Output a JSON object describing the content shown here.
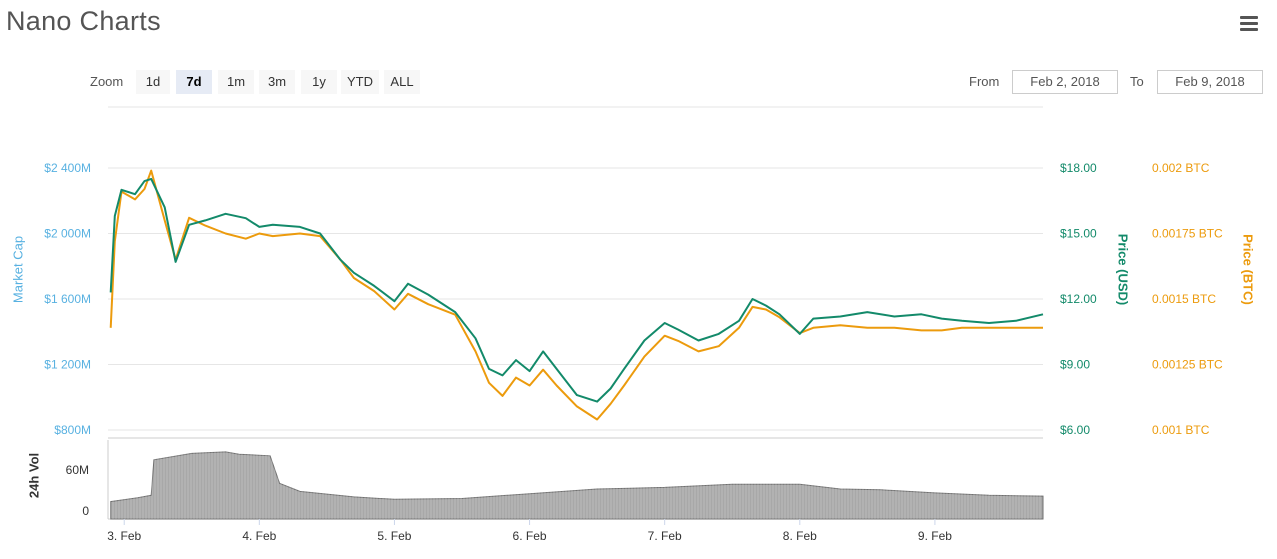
{
  "header": {
    "title": "Nano Charts"
  },
  "toolbar": {
    "zoom_label": "Zoom",
    "zoom_buttons": [
      {
        "label": "1d"
      },
      {
        "label": "7d",
        "active": true
      },
      {
        "label": "1m"
      },
      {
        "label": "3m"
      },
      {
        "label": "1y"
      },
      {
        "label": "YTD"
      },
      {
        "label": "ALL"
      }
    ],
    "from_label": "From",
    "from_value": "Feb 2, 2018",
    "to_label": "To",
    "to_value": "Feb 9, 2018"
  },
  "colors": {
    "usd": "#138a6a",
    "btc": "#ec9b0d",
    "marketcap": "#58b1e1",
    "volume": "#8e8e8e"
  },
  "chart_data": {
    "type": "line",
    "x": [
      "3. Feb",
      "4. Feb",
      "5. Feb",
      "6. Feb",
      "7. Feb",
      "8. Feb",
      "9. Feb"
    ],
    "left_axis": {
      "title": "Market Cap",
      "ticks": [
        "$2 400M",
        "$2 000M",
        "$1 600M",
        "$1 200M",
        "$800M"
      ]
    },
    "right_axis_usd": {
      "title": "Price (USD)",
      "ticks": [
        "$18.00",
        "$15.00",
        "$12.00",
        "$9.00",
        "$6.00"
      ],
      "range": [
        6,
        18
      ]
    },
    "right_axis_btc": {
      "title": "Price (BTC)",
      "ticks": [
        "0.002 BTC",
        "0.00175 BTC",
        "0.0015 BTC",
        "0.00125 BTC",
        "0.001 BTC"
      ],
      "range": [
        0.001,
        0.002
      ]
    },
    "volume_axis": {
      "title": "24h Vol",
      "ticks": [
        "60M",
        "0"
      ]
    },
    "series": [
      {
        "name": "Price (USD)",
        "axis": "usd",
        "points": [
          [
            2.9,
            12.3
          ],
          [
            2.93,
            15.8
          ],
          [
            2.98,
            17.0
          ],
          [
            3.08,
            16.8
          ],
          [
            3.15,
            17.4
          ],
          [
            3.2,
            17.5
          ],
          [
            3.3,
            16.2
          ],
          [
            3.38,
            13.7
          ],
          [
            3.48,
            15.4
          ],
          [
            3.6,
            15.6
          ],
          [
            3.75,
            15.9
          ],
          [
            3.9,
            15.7
          ],
          [
            4.0,
            15.3
          ],
          [
            4.1,
            15.4
          ],
          [
            4.3,
            15.3
          ],
          [
            4.45,
            15.0
          ],
          [
            4.6,
            13.8
          ],
          [
            4.7,
            13.2
          ],
          [
            4.85,
            12.6
          ],
          [
            5.0,
            11.9
          ],
          [
            5.1,
            12.7
          ],
          [
            5.25,
            12.2
          ],
          [
            5.45,
            11.4
          ],
          [
            5.6,
            10.2
          ],
          [
            5.7,
            8.8
          ],
          [
            5.8,
            8.5
          ],
          [
            5.9,
            9.2
          ],
          [
            6.0,
            8.7
          ],
          [
            6.1,
            9.6
          ],
          [
            6.2,
            8.8
          ],
          [
            6.35,
            7.6
          ],
          [
            6.5,
            7.3
          ],
          [
            6.6,
            7.9
          ],
          [
            6.7,
            8.8
          ],
          [
            6.85,
            10.1
          ],
          [
            7.0,
            10.9
          ],
          [
            7.1,
            10.6
          ],
          [
            7.25,
            10.1
          ],
          [
            7.4,
            10.4
          ],
          [
            7.55,
            11.0
          ],
          [
            7.65,
            12.0
          ],
          [
            7.75,
            11.7
          ],
          [
            7.85,
            11.3
          ],
          [
            8.0,
            10.4
          ],
          [
            8.1,
            11.1
          ],
          [
            8.3,
            11.2
          ],
          [
            8.5,
            11.4
          ],
          [
            8.7,
            11.2
          ],
          [
            8.9,
            11.3
          ],
          [
            9.05,
            11.1
          ],
          [
            9.2,
            11.0
          ],
          [
            9.4,
            10.9
          ],
          [
            9.6,
            11.0
          ],
          [
            9.8,
            11.3
          ]
        ]
      },
      {
        "name": "Price (BTC)",
        "axis": "btc",
        "points": [
          [
            2.9,
            0.00139
          ],
          [
            2.93,
            0.00172
          ],
          [
            2.98,
            0.00191
          ],
          [
            3.08,
            0.00188
          ],
          [
            3.15,
            0.00192
          ],
          [
            3.2,
            0.00199
          ],
          [
            3.3,
            0.0018
          ],
          [
            3.38,
            0.00165
          ],
          [
            3.48,
            0.00181
          ],
          [
            3.6,
            0.00178
          ],
          [
            3.75,
            0.00175
          ],
          [
            3.9,
            0.00173
          ],
          [
            4.0,
            0.00175
          ],
          [
            4.1,
            0.00174
          ],
          [
            4.3,
            0.00175
          ],
          [
            4.45,
            0.00174
          ],
          [
            4.6,
            0.00165
          ],
          [
            4.7,
            0.00158
          ],
          [
            4.85,
            0.00153
          ],
          [
            5.0,
            0.00146
          ],
          [
            5.1,
            0.00152
          ],
          [
            5.25,
            0.00148
          ],
          [
            5.45,
            0.00144
          ],
          [
            5.6,
            0.0013
          ],
          [
            5.7,
            0.00118
          ],
          [
            5.8,
            0.00113
          ],
          [
            5.9,
            0.0012
          ],
          [
            6.0,
            0.00117
          ],
          [
            6.1,
            0.00123
          ],
          [
            6.2,
            0.00117
          ],
          [
            6.35,
            0.00109
          ],
          [
            6.5,
            0.00104
          ],
          [
            6.6,
            0.0011
          ],
          [
            6.7,
            0.00117
          ],
          [
            6.85,
            0.00128
          ],
          [
            7.0,
            0.00136
          ],
          [
            7.1,
            0.00134
          ],
          [
            7.25,
            0.0013
          ],
          [
            7.4,
            0.00132
          ],
          [
            7.55,
            0.00139
          ],
          [
            7.65,
            0.00147
          ],
          [
            7.75,
            0.00146
          ],
          [
            7.85,
            0.00143
          ],
          [
            8.0,
            0.00137
          ],
          [
            8.1,
            0.00139
          ],
          [
            8.3,
            0.0014
          ],
          [
            8.5,
            0.00139
          ],
          [
            8.7,
            0.00139
          ],
          [
            8.9,
            0.00138
          ],
          [
            9.05,
            0.00138
          ],
          [
            9.2,
            0.00139
          ],
          [
            9.4,
            0.00139
          ],
          [
            9.6,
            0.00139
          ],
          [
            9.8,
            0.00139
          ]
        ]
      },
      {
        "name": "24h Vol",
        "axis": "volume",
        "type": "area",
        "points": [
          [
            2.9,
            22
          ],
          [
            3.1,
            27
          ],
          [
            3.2,
            30
          ],
          [
            3.22,
            75
          ],
          [
            3.5,
            83
          ],
          [
            3.75,
            85
          ],
          [
            3.85,
            82
          ],
          [
            4.08,
            80
          ],
          [
            4.15,
            45
          ],
          [
            4.3,
            35
          ],
          [
            4.7,
            28
          ],
          [
            5.0,
            25
          ],
          [
            5.5,
            26
          ],
          [
            6.0,
            32
          ],
          [
            6.5,
            38
          ],
          [
            7.0,
            40
          ],
          [
            7.5,
            44
          ],
          [
            8.0,
            44
          ],
          [
            8.3,
            38
          ],
          [
            8.6,
            37
          ],
          [
            9.0,
            33
          ],
          [
            9.4,
            30
          ],
          [
            9.8,
            29
          ]
        ]
      }
    ]
  }
}
